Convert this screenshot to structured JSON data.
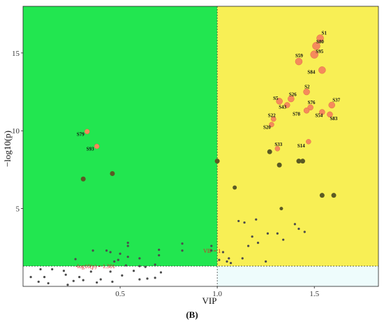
{
  "chart_data": {
    "type": "scatter",
    "xlabel": "VIP",
    "ylabel": "−log10(p)",
    "xlim": [
      0,
      1.83
    ],
    "ylim": [
      0,
      18
    ],
    "x_ticks": [
      0.5,
      1.0,
      1.5
    ],
    "x_tick_labels": [
      "0.5",
      "1.0",
      "1.5"
    ],
    "y_ticks": [
      5,
      10,
      15
    ],
    "y_tick_labels": [
      "5",
      "10",
      "15"
    ],
    "grid": false,
    "legend": "none",
    "panel_label": "(B)",
    "thresholds": {
      "vip": 1.0,
      "vip_label": "VIP = 1",
      "neglog10p": 1.301,
      "p_label": "-log10(p) = 1.301"
    },
    "regions": [
      {
        "name": "low-vip-significant",
        "color": "#22e650"
      },
      {
        "name": "high-vip-significant",
        "color": "#f8ef55"
      },
      {
        "name": "low-vip-not-significant",
        "color": "#ffffff"
      },
      {
        "name": "high-vip-not-significant",
        "color": "#eefcfc"
      }
    ],
    "colors": {
      "highlight_fill": "#f58a5c",
      "highlight_stroke": "#e06a44",
      "olive": "#5b5a24",
      "gray": "#4c4c4c",
      "threshold_text": "#dd2222",
      "threshold_line": "#333333"
    },
    "highlighted": [
      {
        "label": "S1",
        "x": 1.53,
        "y": 15.95,
        "size": 5
      },
      {
        "label": "S80",
        "x": 1.51,
        "y": 15.45,
        "size": 5.5
      },
      {
        "label": "S95",
        "x": 1.5,
        "y": 14.9,
        "size": 5.5
      },
      {
        "label": "S59",
        "x": 1.42,
        "y": 14.45,
        "size": 5
      },
      {
        "label": "S84",
        "x": 1.54,
        "y": 13.9,
        "size": 5
      },
      {
        "label": "S2",
        "x": 1.46,
        "y": 12.5,
        "size": 4.5
      },
      {
        "label": "S26",
        "x": 1.38,
        "y": 12.05,
        "size": 4.5
      },
      {
        "label": "S5",
        "x": 1.32,
        "y": 11.9,
        "size": 4.5
      },
      {
        "label": "S43",
        "x": 1.36,
        "y": 11.65,
        "size": 4
      },
      {
        "label": "S37",
        "x": 1.59,
        "y": 11.65,
        "size": 4.5
      },
      {
        "label": "S76",
        "x": 1.48,
        "y": 11.5,
        "size": 4
      },
      {
        "label": "S78",
        "x": 1.46,
        "y": 11.3,
        "size": 4
      },
      {
        "label": "S54",
        "x": 1.54,
        "y": 11.2,
        "size": 4
      },
      {
        "label": "S83",
        "x": 1.58,
        "y": 11.05,
        "size": 4
      },
      {
        "label": "S22",
        "x": 1.29,
        "y": 10.75,
        "size": 3.5
      },
      {
        "label": "S20",
        "x": 1.28,
        "y": 10.4,
        "size": 3.5
      },
      {
        "label": "S79",
        "x": 0.33,
        "y": 9.95,
        "size": 3.5
      },
      {
        "label": "S14",
        "x": 1.47,
        "y": 9.3,
        "size": 3.5
      },
      {
        "label": "S93",
        "x": 0.38,
        "y": 9.0,
        "size": 3.5
      },
      {
        "label": "S33",
        "x": 1.31,
        "y": 8.85,
        "size": 3.5
      }
    ],
    "olive_points": [
      {
        "x": 1.0,
        "y": 8.05,
        "size": 3.5
      },
      {
        "x": 1.27,
        "y": 8.65,
        "size": 3.5
      },
      {
        "x": 1.42,
        "y": 8.05,
        "size": 3.5
      },
      {
        "x": 1.44,
        "y": 8.05,
        "size": 3.5
      },
      {
        "x": 1.32,
        "y": 7.8,
        "size": 3.5
      },
      {
        "x": 0.46,
        "y": 7.25,
        "size": 3.5
      },
      {
        "x": 0.31,
        "y": 6.9,
        "size": 3.5
      },
      {
        "x": 1.09,
        "y": 6.35,
        "size": 3
      },
      {
        "x": 1.54,
        "y": 5.85,
        "size": 3.5
      },
      {
        "x": 1.6,
        "y": 5.85,
        "size": 3.5
      },
      {
        "x": 1.33,
        "y": 5.0,
        "size": 2.5
      }
    ],
    "gray_points": [
      {
        "x": 1.11,
        "y": 4.2
      },
      {
        "x": 1.14,
        "y": 4.1
      },
      {
        "x": 1.2,
        "y": 4.3
      },
      {
        "x": 1.4,
        "y": 4.0
      },
      {
        "x": 1.42,
        "y": 3.7
      },
      {
        "x": 1.45,
        "y": 3.5
      },
      {
        "x": 1.18,
        "y": 3.2
      },
      {
        "x": 1.26,
        "y": 3.4
      },
      {
        "x": 1.31,
        "y": 3.4
      },
      {
        "x": 1.21,
        "y": 2.8
      },
      {
        "x": 1.34,
        "y": 3.0
      },
      {
        "x": 1.16,
        "y": 2.6
      },
      {
        "x": 0.97,
        "y": 2.6
      },
      {
        "x": 0.97,
        "y": 2.3
      },
      {
        "x": 1.03,
        "y": 2.2
      },
      {
        "x": 0.82,
        "y": 2.75
      },
      {
        "x": 0.82,
        "y": 2.3
      },
      {
        "x": 0.54,
        "y": 2.8
      },
      {
        "x": 0.54,
        "y": 2.6
      },
      {
        "x": 0.43,
        "y": 2.3
      },
      {
        "x": 0.45,
        "y": 2.2
      },
      {
        "x": 0.36,
        "y": 2.3
      },
      {
        "x": 0.7,
        "y": 2.35
      },
      {
        "x": 0.5,
        "y": 2.1
      },
      {
        "x": 0.54,
        "y": 1.9
      },
      {
        "x": 0.6,
        "y": 1.8
      },
      {
        "x": 0.7,
        "y": 2.0
      },
      {
        "x": 0.27,
        "y": 1.75
      },
      {
        "x": 0.49,
        "y": 1.7
      },
      {
        "x": 0.47,
        "y": 1.6
      },
      {
        "x": 1.06,
        "y": 1.8
      },
      {
        "x": 1.05,
        "y": 1.6
      },
      {
        "x": 1.07,
        "y": 1.5
      },
      {
        "x": 1.01,
        "y": 1.7
      },
      {
        "x": 1.13,
        "y": 1.8
      },
      {
        "x": 1.25,
        "y": 1.6
      },
      {
        "x": 0.53,
        "y": 1.35
      },
      {
        "x": 0.6,
        "y": 1.3
      },
      {
        "x": 0.68,
        "y": 1.4
      },
      {
        "x": 0.63,
        "y": 1.25
      },
      {
        "x": 0.6,
        "y": 0.45
      },
      {
        "x": 0.64,
        "y": 0.5
      },
      {
        "x": 0.68,
        "y": 0.55
      },
      {
        "x": 0.21,
        "y": 1.0
      },
      {
        "x": 0.22,
        "y": 0.75
      },
      {
        "x": 0.29,
        "y": 0.6
      },
      {
        "x": 0.26,
        "y": 0.35
      },
      {
        "x": 0.31,
        "y": 0.4
      },
      {
        "x": 0.35,
        "y": 0.95
      },
      {
        "x": 0.38,
        "y": 0.25
      },
      {
        "x": 0.4,
        "y": 0.45
      },
      {
        "x": 0.46,
        "y": 0.3
      },
      {
        "x": 0.45,
        "y": 0.95
      },
      {
        "x": 0.23,
        "y": 0.1
      },
      {
        "x": 0.15,
        "y": 1.1
      },
      {
        "x": 0.09,
        "y": 1.1
      },
      {
        "x": 0.11,
        "y": 0.6
      },
      {
        "x": 0.13,
        "y": 0.2
      },
      {
        "x": 0.04,
        "y": 0.6
      },
      {
        "x": 0.08,
        "y": 0.3
      },
      {
        "x": 0.51,
        "y": 0.7
      },
      {
        "x": 0.57,
        "y": 1.0
      },
      {
        "x": 0.71,
        "y": 0.9
      }
    ]
  }
}
